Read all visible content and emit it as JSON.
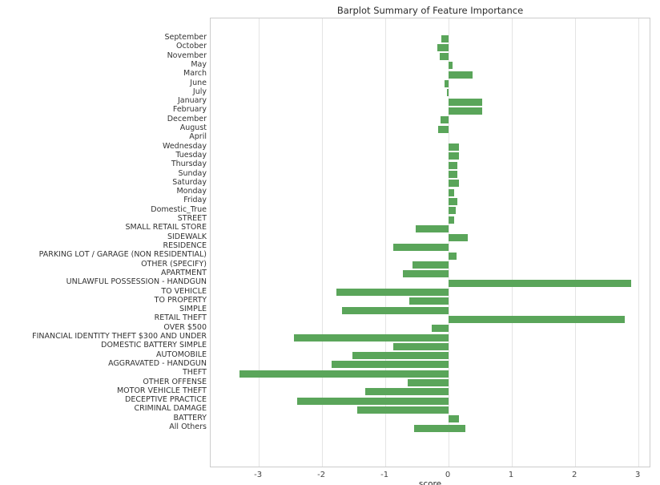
{
  "chart_data": {
    "type": "bar",
    "orientation": "horizontal",
    "title": "Barplot Summary of Feature Importance",
    "xlabel": "score",
    "ylabel": "",
    "xlim": [
      -3.76,
      3.2
    ],
    "xticks": [
      -3,
      -2,
      -1,
      0,
      1,
      2,
      3
    ],
    "grid": "vertical",
    "legend": "none",
    "bar_color": "#5aa55a",
    "bars": [
      {
        "label": "September",
        "from": -0.11,
        "to": 0
      },
      {
        "label": "October",
        "from": -0.18,
        "to": 0
      },
      {
        "label": "November",
        "from": -0.14,
        "to": 0
      },
      {
        "label": "May",
        "from": 0,
        "to": 0.06
      },
      {
        "label": "March",
        "from": 0,
        "to": 0.38
      },
      {
        "label": "June",
        "from": -0.07,
        "to": 0
      },
      {
        "label": "July",
        "from": -0.03,
        "to": 0
      },
      {
        "label": "January",
        "from": 0,
        "to": 0.53
      },
      {
        "label": "February",
        "from": 0,
        "to": 0.53
      },
      {
        "label": "December",
        "from": -0.13,
        "to": 0
      },
      {
        "label": "August",
        "from": -0.17,
        "to": 0
      },
      {
        "label": "April",
        "from": 0,
        "to": 0
      },
      {
        "label": "Wednesday",
        "from": 0,
        "to": 0.16
      },
      {
        "label": "Tuesday",
        "from": 0,
        "to": 0.16
      },
      {
        "label": "Thursday",
        "from": 0,
        "to": 0.14
      },
      {
        "label": "Sunday",
        "from": 0,
        "to": 0.14
      },
      {
        "label": "Saturday",
        "from": 0,
        "to": 0.16
      },
      {
        "label": "Monday",
        "from": 0,
        "to": 0.09
      },
      {
        "label": "Friday",
        "from": 0,
        "to": 0.14
      },
      {
        "label": "Domestic_True",
        "from": 0,
        "to": 0.11
      },
      {
        "label": "STREET",
        "from": 0,
        "to": 0.09
      },
      {
        "label": "SMALL RETAIL STORE",
        "from": -0.52,
        "to": 0
      },
      {
        "label": "SIDEWALK",
        "from": 0,
        "to": 0.3
      },
      {
        "label": "RESIDENCE",
        "from": -0.88,
        "to": 0
      },
      {
        "label": "PARKING LOT / GARAGE (NON RESIDENTIAL)",
        "from": 0,
        "to": 0.12
      },
      {
        "label": "OTHER (SPECIFY)",
        "from": -0.57,
        "to": 0
      },
      {
        "label": "APARTMENT",
        "from": -0.72,
        "to": 0
      },
      {
        "label": "UNLAWFUL POSSESSION - HANDGUN",
        "from": 0,
        "to": 2.88
      },
      {
        "label": "TO VEHICLE",
        "from": -1.78,
        "to": 0
      },
      {
        "label": "TO PROPERTY",
        "from": -0.62,
        "to": 0
      },
      {
        "label": "SIMPLE",
        "from": -1.68,
        "to": 0
      },
      {
        "label": "RETAIL THEFT",
        "from": 0,
        "to": 2.78
      },
      {
        "label": "OVER $500",
        "from": -0.27,
        "to": 0
      },
      {
        "label": "FINANCIAL IDENTITY THEFT $300 AND UNDER",
        "from": -2.45,
        "to": 0
      },
      {
        "label": "DOMESTIC BATTERY SIMPLE",
        "from": -0.88,
        "to": 0
      },
      {
        "label": "AUTOMOBILE",
        "from": -1.52,
        "to": 0
      },
      {
        "label": "AGGRAVATED - HANDGUN",
        "from": -1.85,
        "to": 0
      },
      {
        "label": "THEFT",
        "from": -3.3,
        "to": 0
      },
      {
        "label": "OTHER OFFENSE",
        "from": -0.65,
        "to": 0
      },
      {
        "label": "MOTOR VEHICLE THEFT",
        "from": -1.32,
        "to": 0
      },
      {
        "label": "DECEPTIVE PRACTICE",
        "from": -2.4,
        "to": 0
      },
      {
        "label": "CRIMINAL DAMAGE",
        "from": -1.45,
        "to": 0
      },
      {
        "label": "BATTERY",
        "from": 0,
        "to": 0.16
      },
      {
        "label": "All Others",
        "from": -0.55,
        "to": 0.27
      }
    ]
  }
}
